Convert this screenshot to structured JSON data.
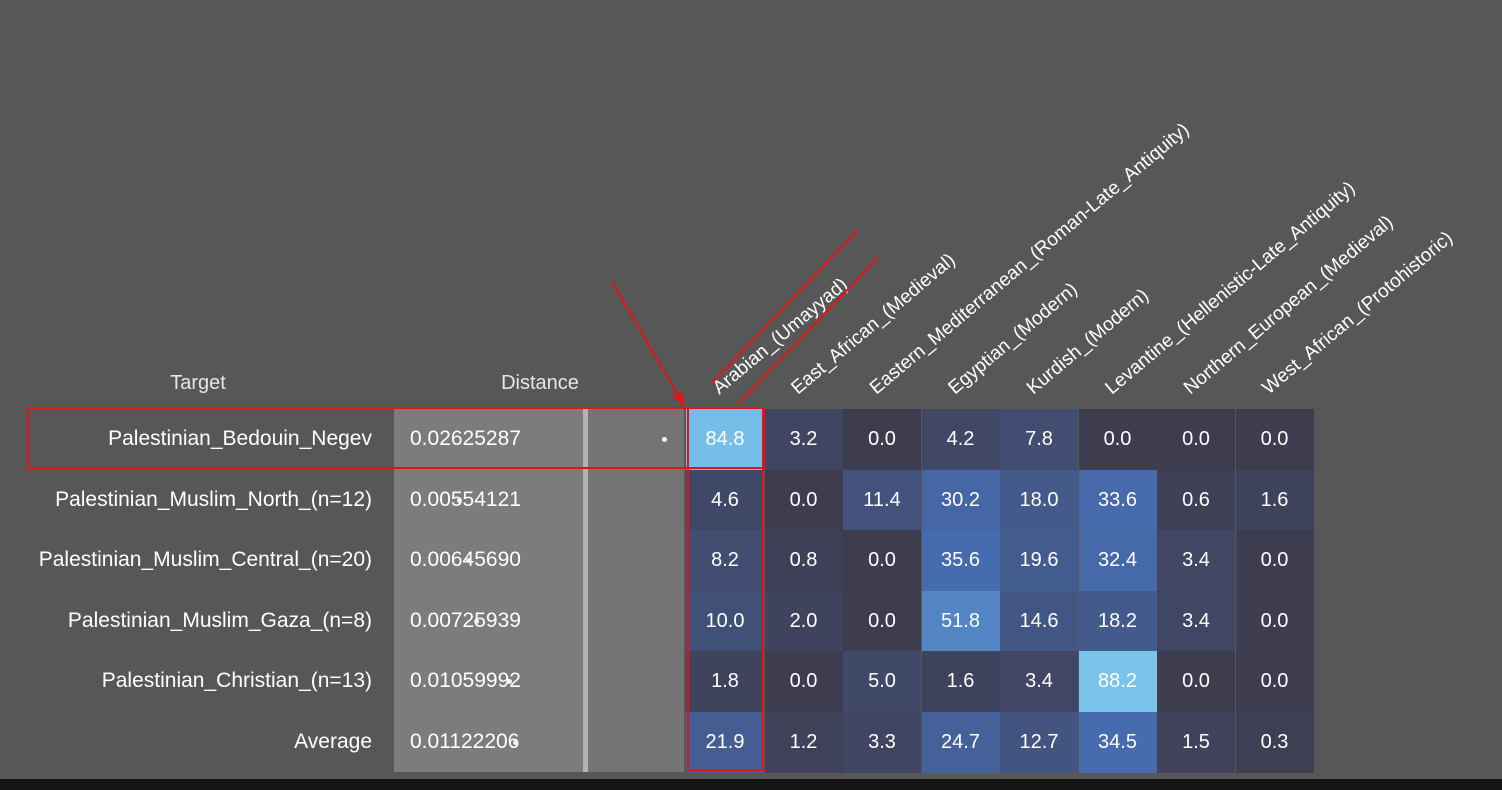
{
  "headers": {
    "target": "Target",
    "distance": "Distance"
  },
  "colors": {
    "background": "#575757",
    "heatmap_low": "#3e3d50",
    "heatmap_mid": "#4770b8",
    "heatmap_high": "#86d8f7",
    "highlight": "#e21414"
  },
  "chart_data": {
    "type": "heatmap",
    "columns": [
      "Arabian_(Umayyad)",
      "East_African_(Medieval)",
      "Eastern_Mediterranean_(Roman-Late_Antiquity)",
      "Egyptian_(Modern)",
      "Kurdish_(Modern)",
      "Levantine_(Hellenistic-Late_Antiquity)",
      "Northern_European_(Medieval)",
      "West_African_(Protohistoric)"
    ],
    "rows": [
      {
        "target": "Palestinian_Bedouin_Negev",
        "distance": "0.02625287",
        "distance_value": 0.02625287,
        "values": [
          "84.8",
          "3.2",
          "0.0",
          "4.2",
          "7.8",
          "0.0",
          "0.0",
          "0.0"
        ]
      },
      {
        "target": "Palestinian_Muslim_North_(n=12)",
        "distance": "0.00554121",
        "distance_value": 0.00554121,
        "values": [
          "4.6",
          "0.0",
          "11.4",
          "30.2",
          "18.0",
          "33.6",
          "0.6",
          "1.6"
        ]
      },
      {
        "target": "Palestinian_Muslim_Central_(n=20)",
        "distance": "0.00645690",
        "distance_value": 0.0064569,
        "values": [
          "8.2",
          "0.8",
          "0.0",
          "35.6",
          "19.6",
          "32.4",
          "3.4",
          "0.0"
        ]
      },
      {
        "target": "Palestinian_Muslim_Gaza_(n=8)",
        "distance": "0.00725939",
        "distance_value": 0.00725939,
        "values": [
          "10.0",
          "2.0",
          "0.0",
          "51.8",
          "14.6",
          "18.2",
          "3.4",
          "0.0"
        ]
      },
      {
        "target": "Palestinian_Christian_(n=13)",
        "distance": "0.01059992",
        "distance_value": 0.01059992,
        "values": [
          "1.8",
          "0.0",
          "5.0",
          "1.6",
          "3.4",
          "88.2",
          "0.0",
          "0.0"
        ]
      },
      {
        "target": "Average",
        "distance": "0.01122206",
        "distance_value": 0.01122206,
        "values": [
          "21.9",
          "1.2",
          "3.3",
          "24.7",
          "12.7",
          "34.5",
          "1.5",
          "0.3"
        ]
      }
    ],
    "value_range": [
      0,
      100
    ],
    "grid": false,
    "legend": "none"
  }
}
